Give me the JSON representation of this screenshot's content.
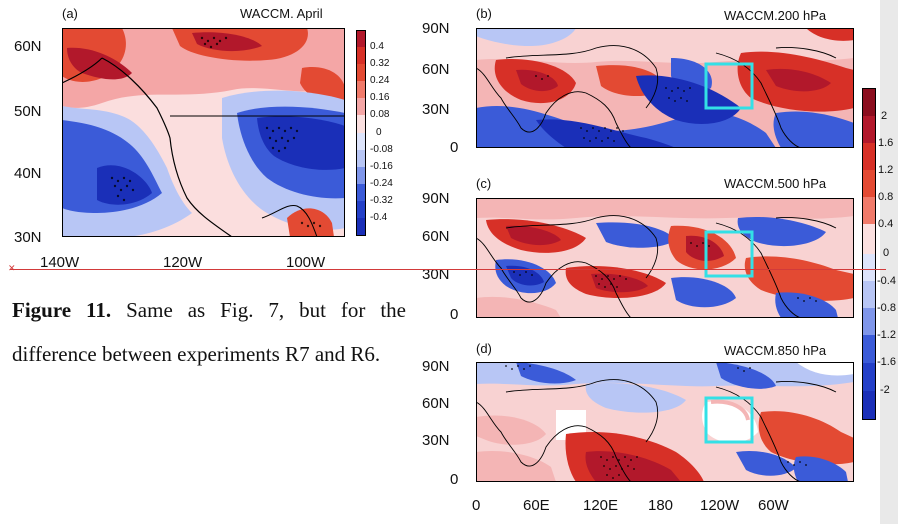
{
  "panel_a": {
    "letter": "(a)",
    "title": "WACCM. April",
    "lat_labels": [
      "60N",
      "50N",
      "40N",
      "30N"
    ],
    "lon_labels": [
      "140W",
      "120W",
      "100W"
    ],
    "colorbar_ticks": [
      "0.4",
      "0.32",
      "0.24",
      "0.16",
      "0.08",
      "0",
      "-0.08",
      "-0.16",
      "-0.24",
      "-0.32",
      "-0.4"
    ]
  },
  "panels_global": {
    "lat_labels": [
      "90N",
      "60N",
      "30N",
      "0"
    ],
    "lon_labels": [
      "0",
      "60E",
      "120E",
      "180",
      "120W",
      "60W"
    ],
    "items": [
      {
        "letter": "(b)",
        "title": "WACCM.200 hPa"
      },
      {
        "letter": "(c)",
        "title": "WACCM.500 hPa"
      },
      {
        "letter": "(d)",
        "title": "WACCM.850 hPa"
      }
    ],
    "colorbar_ticks": [
      "2",
      "1.6",
      "1.2",
      "0.8",
      "0.4",
      "0",
      "-0.4",
      "-0.8",
      "-1.2",
      "-1.6",
      "-2"
    ]
  },
  "caption": {
    "label": "Figure 11.",
    "text": " Same as Fig. 7, but for the difference between experiments R7 and R6."
  },
  "colors": {
    "deep_red": "#b2182b",
    "red": "#e34a33",
    "pink": "#f4a6a6",
    "blue": "#3b5bd8",
    "deep_blue": "#1a2fb8",
    "light_blue": "#b8c6f5",
    "box": "#33e0e6"
  }
}
